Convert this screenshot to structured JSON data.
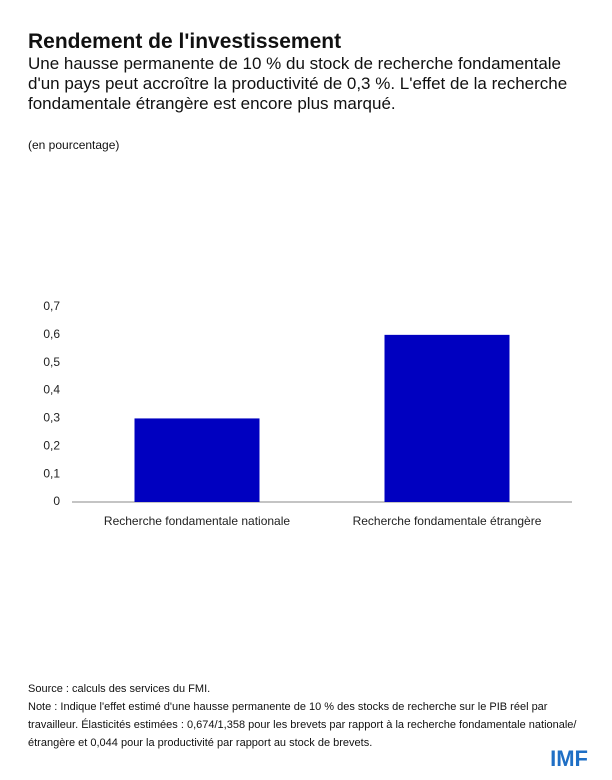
{
  "chart_data": {
    "type": "bar",
    "title": "Rendement de l'investissement",
    "subtitle": "Une hausse permanente de 10 % du stock de recherche fondamentale d'un pays peut accroître la productivité de 0,3 %. L'effet de la recherche fondamentale étrangère est encore plus marqué.",
    "unit_note": "(en pourcentage)",
    "categories": [
      "Recherche fondamentale nationale",
      "Recherche fondamentale étrangère"
    ],
    "values": [
      0.3,
      0.6
    ],
    "color": "#0000c0",
    "ylim": [
      0,
      0.7
    ],
    "yticks": [
      0,
      {
        "value": 0.1,
        "label": "0,1"
      },
      {
        "value": 0.2,
        "label": "0,2"
      },
      {
        "value": 0.3,
        "label": "0,3"
      },
      {
        "value": 0.4,
        "label": "0,4"
      },
      {
        "value": 0.5,
        "label": "0,5"
      },
      {
        "value": 0.6,
        "label": "0,6"
      },
      {
        "value": 0.7,
        "label": "0,7"
      }
    ],
    "grid": false,
    "source": "Source : calculs des services du FMI.",
    "note": "Note : Indique l'effet estimé d'une hausse permanente de 10 % des stocks de recherche sur le PIB réel par travailleur. Élasticités estimées : 0,674/1,358 pour les brevets par rapport à la recherche fondamentale nationale/étrangère et 0,044 pour la productivité par rapport au stock de brevets.",
    "logo": "IMF"
  }
}
